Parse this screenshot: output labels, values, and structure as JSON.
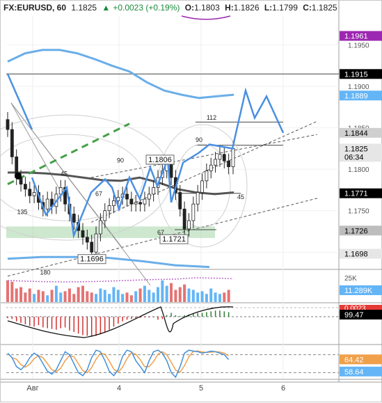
{
  "header": {
    "symbol": "FX:EURUSD, 60",
    "last": "1.1825",
    "change": "+0.0023 (+0.19%)",
    "o_label": "O:",
    "o": "1.1803",
    "h_label": "H:",
    "h": "1.1826",
    "l_label": "L:",
    "l": "1.1799",
    "c_label": "C:",
    "c": "1.1825"
  },
  "price_axis": {
    "ticks": [
      "1.1950",
      "1.1900",
      "1.1850",
      "1.1800",
      "1.1750",
      "1.1700"
    ],
    "badges": [
      {
        "text": "1.1961",
        "bg": "#9c27b0",
        "fg": "#ffffff"
      },
      {
        "text": "1.1915",
        "bg": "#000000",
        "fg": "#ffffff"
      },
      {
        "text": "1.1889",
        "bg": "#64b5f6",
        "fg": "#ffffff"
      },
      {
        "text": "1.1844",
        "bg": "#cfcfcf",
        "fg": "#000000"
      },
      {
        "text": "1.1825",
        "bg": "#e6e6e6",
        "fg": "#000000"
      },
      {
        "text": "06:34",
        "bg": "#e6e6e6",
        "fg": "#000000"
      },
      {
        "text": "1.1771",
        "bg": "#000000",
        "fg": "#ffffff"
      },
      {
        "text": "1.1726",
        "bg": "#bdbdbd",
        "fg": "#000000"
      },
      {
        "text": "1.1698",
        "bg": "#e6e6e6",
        "fg": "#000000"
      }
    ]
  },
  "time_axis": {
    "labels": [
      "Авг",
      "4",
      "5",
      "6"
    ]
  },
  "annotations": {
    "price_labels": [
      "1.1806",
      "1.1721",
      "1.1696"
    ],
    "gann_numbers": [
      "112",
      "90",
      "90",
      "45",
      "67",
      "135",
      "67",
      "45",
      "180"
    ]
  },
  "volume_axis": {
    "tick": "25K",
    "badge": "11.289K",
    "badge_bg": "#64b5f6"
  },
  "macd_axis": {
    "badge_top": "0.0023",
    "badge_top_bg": "#e53935",
    "badge": "99.47"
  },
  "stoch_axis": {
    "badge_k": "64.42",
    "badge_k_bg": "#f0a04b",
    "badge_d": "58.64",
    "badge_d_bg": "#64b5f6"
  },
  "colors": {
    "up": "#2e7d32",
    "down": "#c62828",
    "candle": "#222222",
    "forecast": "#4a90e2",
    "bb": "#6aaee8",
    "ma": "#555555",
    "green_dash": "#43a047"
  },
  "chart_data": [
    {
      "type": "candlestick",
      "title": "FX:EURUSD, 60",
      "ylim": [
        1.168,
        1.1985
      ],
      "x": [
        "Авг",
        "4",
        "5",
        "6"
      ],
      "ohlc_last": {
        "open": 1.1803,
        "high": 1.1826,
        "low": 1.1799,
        "close": 1.1825
      },
      "close_series": [
        1.1848,
        1.1815,
        1.179,
        1.1782,
        1.1776,
        1.1768,
        1.1772,
        1.176,
        1.1752,
        1.1764,
        1.1755,
        1.177,
        1.1778,
        1.1758,
        1.1746,
        1.1736,
        1.1726,
        1.1718,
        1.1712,
        1.17,
        1.1722,
        1.1738,
        1.175,
        1.1756,
        1.1762,
        1.1766,
        1.177,
        1.1764,
        1.1758,
        1.176,
        1.1758,
        1.1764,
        1.177,
        1.1778,
        1.179,
        1.1798,
        1.1806,
        1.179,
        1.1772,
        1.1752,
        1.1728,
        1.1738,
        1.1758,
        1.1772,
        1.1786,
        1.1798,
        1.1805,
        1.1812,
        1.1818,
        1.181,
        1.1803,
        1.1825
      ],
      "forecast_path": [
        1.1915,
        1.1848,
        null,
        1.179,
        1.1745,
        1.1778,
        1.172,
        1.1772,
        1.1788,
        1.1778,
        1.1752,
        1.179,
        1.1764,
        1.1802,
        1.178,
        1.1812,
        1.176,
        1.1808,
        1.182,
        1.183,
        1.1825,
        1.1895,
        1.1862,
        1.1888,
        1.1844
      ],
      "levels": {
        "resistance": 1.1915,
        "pivot": 1.1844,
        "support": 1.1771,
        "zone": 1.1726,
        "low": 1.1698
      }
    },
    {
      "type": "bar",
      "name": "Volume",
      "ylim": [
        0,
        25000
      ],
      "last": 11289
    },
    {
      "type": "bar",
      "name": "MACD",
      "last_macd": 0.0023,
      "last_signal": 99.47
    },
    {
      "type": "line",
      "name": "Stochastic",
      "ylim": [
        0,
        100
      ],
      "k": 64.42,
      "d": 58.64
    }
  ]
}
